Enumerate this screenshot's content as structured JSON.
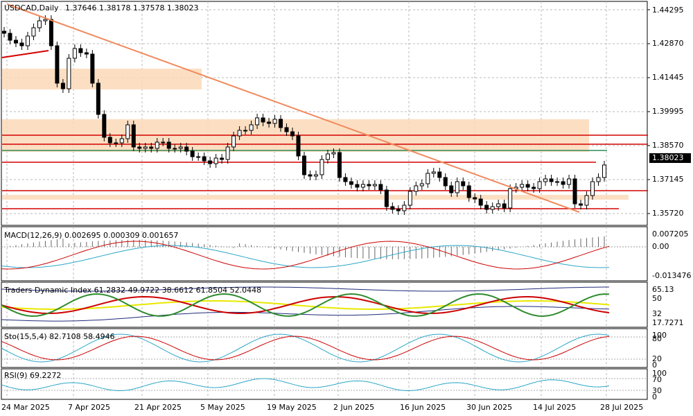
{
  "main": {
    "title": "USDCAD,Daily",
    "ohlc": "1.37646 1.38178 1.37578 1.38023",
    "current_price_tag": "1.38023",
    "price_axis": [
      "1.44295",
      "1.42870",
      "1.41445",
      "1.39995",
      "1.38570",
      "1.38023",
      "1.37145",
      "1.35720"
    ],
    "colors": {
      "trendline": "#f08a5d",
      "resistance": "#d40000",
      "support_green": "#2e8b57",
      "zone": "#fcd9b8"
    }
  },
  "macd": {
    "title": "MACD(12,26,9) 0.002695 0.000309 0.001657",
    "axis": [
      "0.007205",
      "0.00",
      "-0.013476"
    ]
  },
  "tdi": {
    "title": "Traders Dynamic Index 61.2832 49.9722 38.6612 61.8504 52.0448",
    "axis": [
      "65.13",
      "50",
      "32",
      "17.7271"
    ]
  },
  "sto": {
    "title": "Sto(15,5,4) 82.7108 58.4946",
    "axis": [
      "100",
      "80",
      "20",
      "0"
    ]
  },
  "rsi": {
    "title": "RSI(9) 69.2272",
    "axis": [
      "100",
      "70",
      "30",
      "0"
    ]
  },
  "dates": [
    "24 Mar 2025",
    "7 Apr 2025",
    "21 Apr 2025",
    "5 May 2025",
    "19 May 2025",
    "2 Jun 2025",
    "16 Jun 2025",
    "30 Jun 2025",
    "14 Jul 2025",
    "28 Jul 2025"
  ]
}
